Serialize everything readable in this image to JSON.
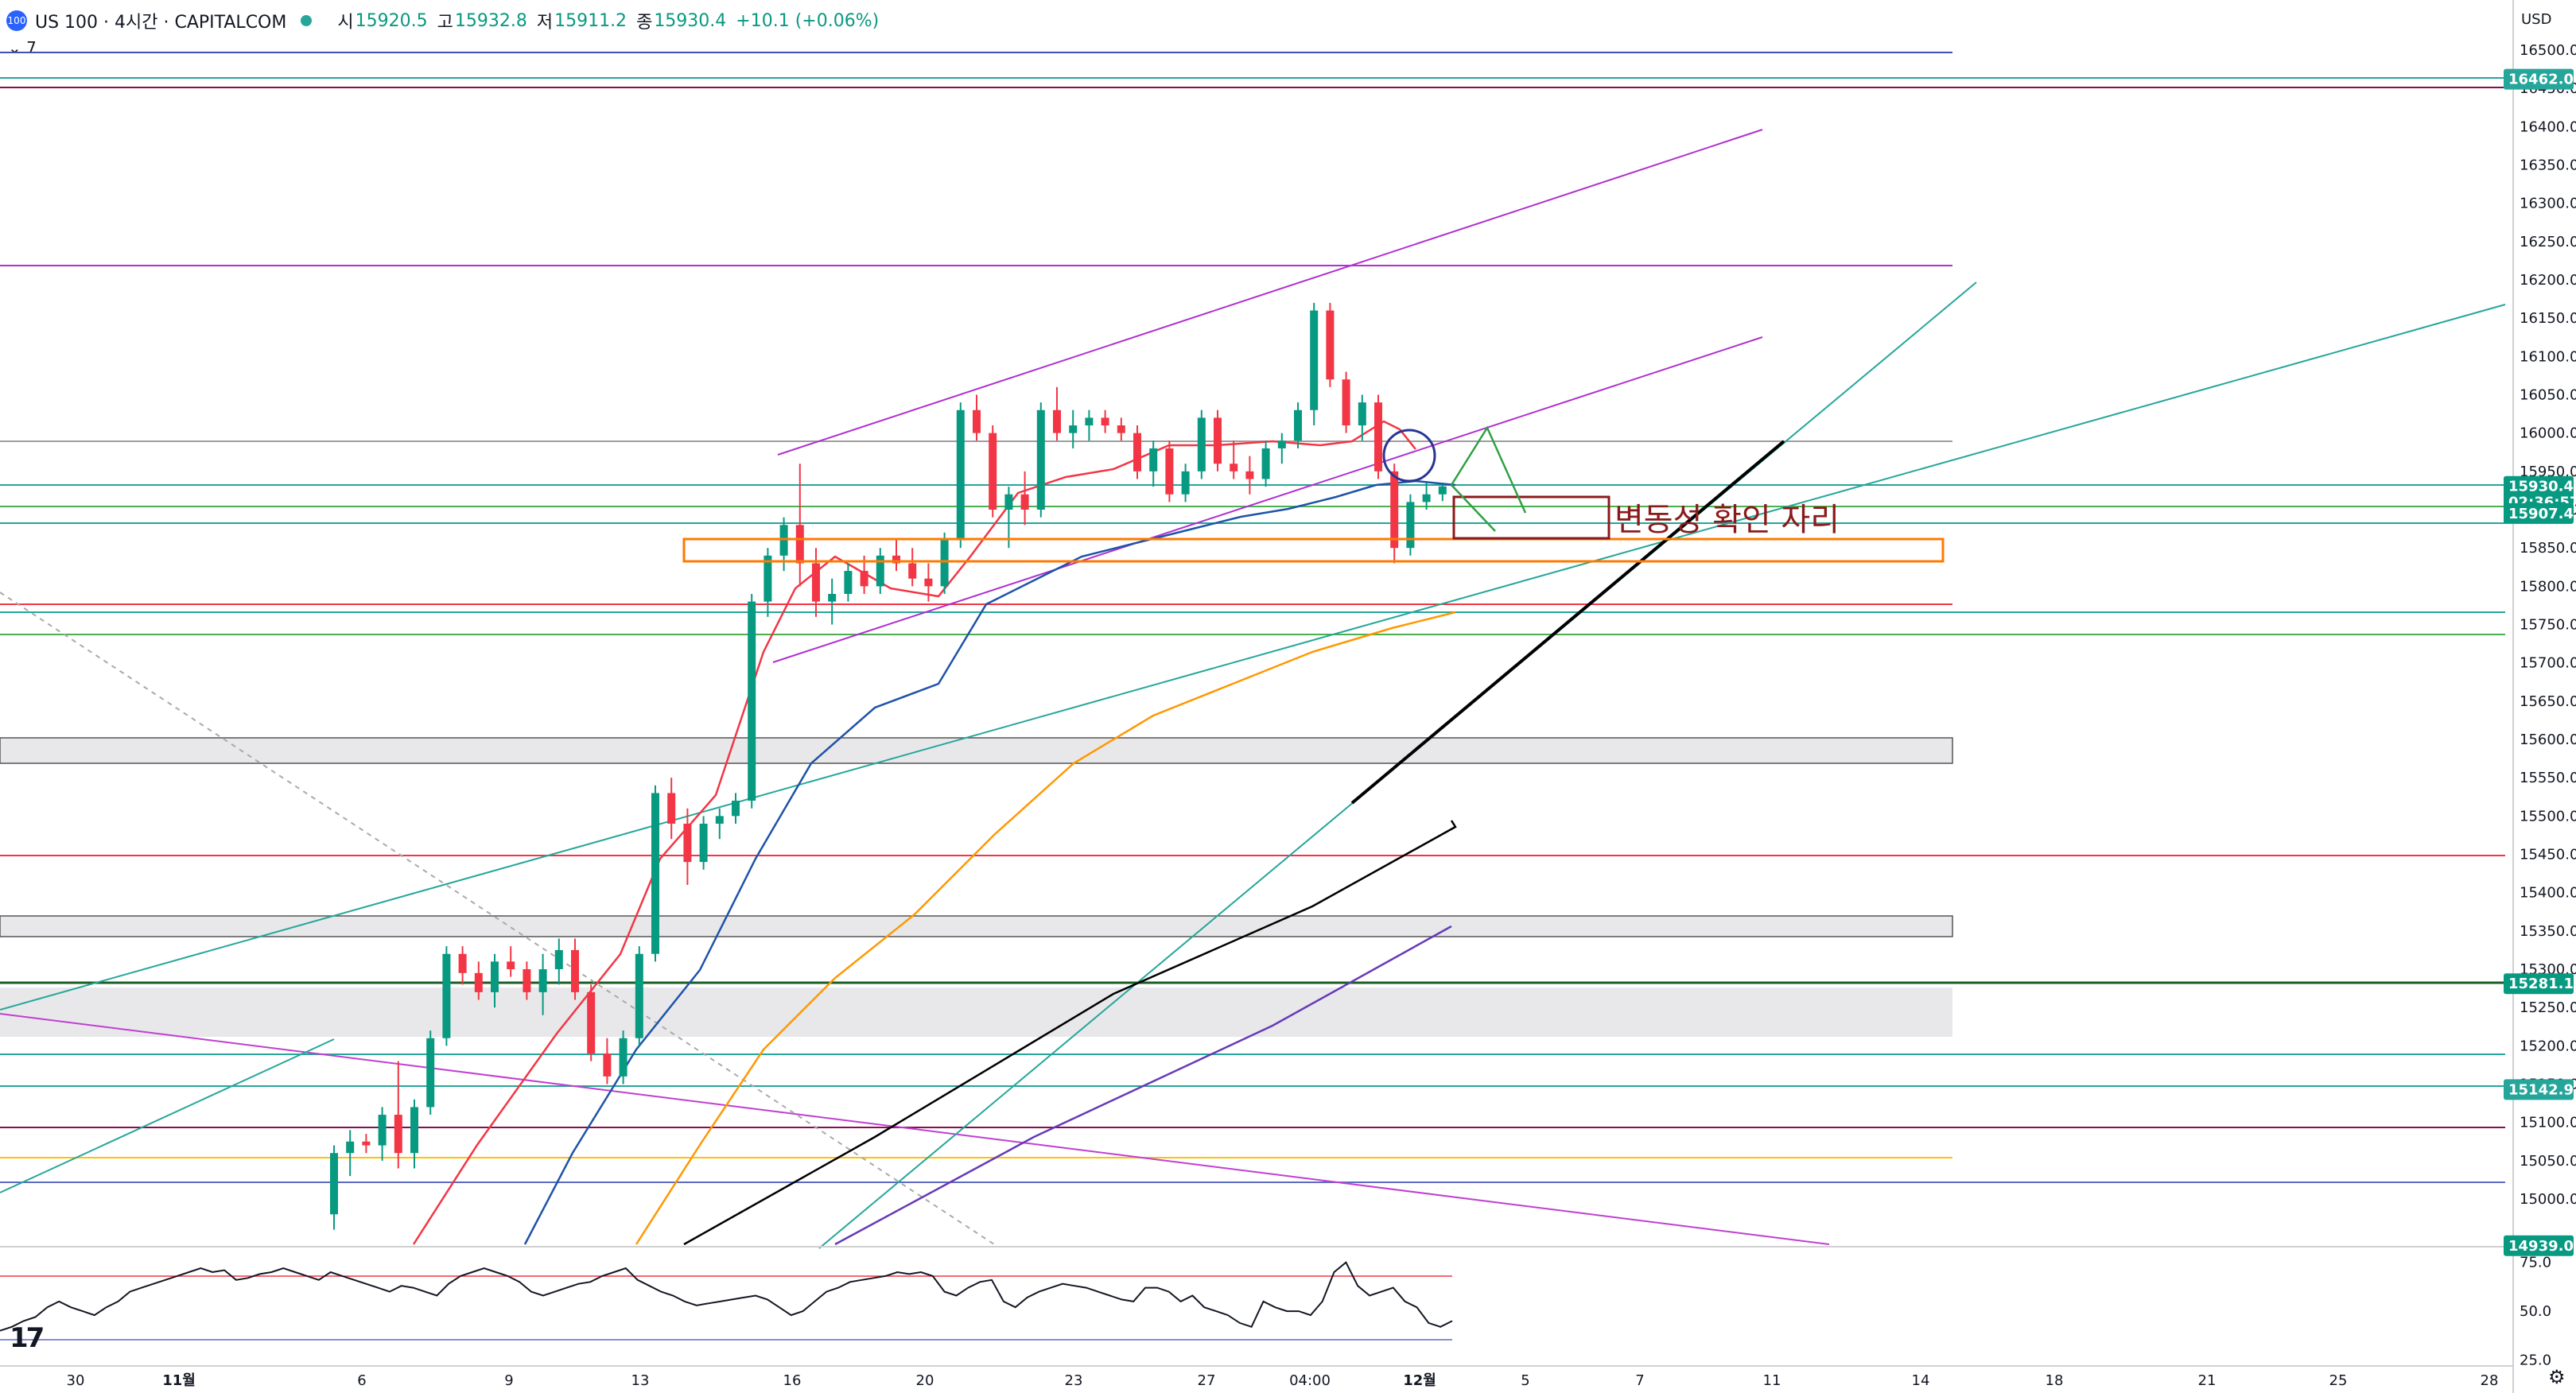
{
  "header": {
    "logo_text": "100",
    "symbol": "US 100 · 4시간 · CAPITALCOM",
    "open_label": "시",
    "open": "15920.5",
    "high_label": "고",
    "high": "15932.8",
    "low_label": "저",
    "low": "15911.2",
    "close_label": "종",
    "close": "15930.4",
    "change": "+10.1 (+0.06%)",
    "collapse": "⌄ 7"
  },
  "colors": {
    "up": "#089981",
    "down": "#f23645",
    "ema_fast": "#f23645",
    "ema_mid": "#1e53a8",
    "ema_slow": "#ff9800",
    "channel": "#b030d0",
    "trend_teal": "#26a69a",
    "annotation": "#8b1a1a"
  },
  "chart_data": {
    "type": "candlestick",
    "currency": "USD",
    "y_ticks": [
      16500,
      16450,
      16400,
      16350,
      16300,
      16250,
      16200,
      16150,
      16100,
      16050,
      16000,
      15950,
      15900,
      15850,
      15800,
      15750,
      15700,
      15650,
      15600,
      15550,
      15500,
      15450,
      15400,
      15350,
      15300,
      15250,
      15200,
      15150,
      15100,
      15050,
      15000
    ],
    "ylim": [
      14925,
      16535
    ],
    "x_tick_labels": [
      "30",
      "11월",
      "6",
      "9",
      "13",
      "16",
      "20",
      "23",
      "27",
      "04:00",
      "12월",
      "5",
      "7",
      "11",
      "14",
      "18",
      "21",
      "25",
      "28"
    ],
    "price_badges": [
      {
        "text": "16462.0",
        "color": "#26a69a"
      },
      {
        "text": "15930.4",
        "color": "#089981"
      },
      {
        "text": "02:36:57",
        "color": "#089981"
      },
      {
        "text": "15907.4",
        "color": "#089981"
      },
      {
        "text": "15281.1",
        "color": "#089981"
      },
      {
        "text": "15142.9",
        "color": "#26a69a"
      },
      {
        "text": "14939.0",
        "color": "#089981"
      }
    ],
    "annotation": "변동성 확인 자리",
    "candles": [
      [
        14980,
        15070,
        14960,
        15060
      ],
      [
        15060,
        15090,
        15030,
        15075
      ],
      [
        15075,
        15085,
        15060,
        15070
      ],
      [
        15070,
        15120,
        15050,
        15110
      ],
      [
        15110,
        15180,
        15040,
        15060
      ],
      [
        15060,
        15130,
        15040,
        15120
      ],
      [
        15120,
        15220,
        15110,
        15210
      ],
      [
        15210,
        15330,
        15200,
        15320
      ],
      [
        15320,
        15330,
        15280,
        15295
      ],
      [
        15295,
        15310,
        15260,
        15270
      ],
      [
        15270,
        15320,
        15250,
        15310
      ],
      [
        15310,
        15330,
        15290,
        15300
      ],
      [
        15300,
        15310,
        15260,
        15270
      ],
      [
        15270,
        15320,
        15240,
        15300
      ],
      [
        15300,
        15340,
        15280,
        15325
      ],
      [
        15325,
        15340,
        15260,
        15270
      ],
      [
        15270,
        15280,
        15180,
        15190
      ],
      [
        15190,
        15210,
        15150,
        15160
      ],
      [
        15160,
        15220,
        15150,
        15210
      ],
      [
        15210,
        15330,
        15200,
        15320
      ],
      [
        15320,
        15540,
        15310,
        15530
      ],
      [
        15530,
        15550,
        15470,
        15490
      ],
      [
        15490,
        15510,
        15410,
        15440
      ],
      [
        15440,
        15500,
        15430,
        15490
      ],
      [
        15490,
        15510,
        15470,
        15500
      ],
      [
        15500,
        15530,
        15490,
        15520
      ],
      [
        15520,
        15790,
        15510,
        15780
      ],
      [
        15780,
        15850,
        15760,
        15840
      ],
      [
        15840,
        15890,
        15820,
        15880
      ],
      [
        15880,
        15960,
        15800,
        15830
      ],
      [
        15830,
        15850,
        15760,
        15780
      ],
      [
        15780,
        15810,
        15750,
        15790
      ],
      [
        15790,
        15830,
        15780,
        15820
      ],
      [
        15820,
        15840,
        15790,
        15800
      ],
      [
        15800,
        15850,
        15790,
        15840
      ],
      [
        15840,
        15860,
        15820,
        15830
      ],
      [
        15830,
        15850,
        15800,
        15810
      ],
      [
        15810,
        15830,
        15780,
        15800
      ],
      [
        15800,
        15870,
        15790,
        15860
      ],
      [
        15860,
        16040,
        15850,
        16030
      ],
      [
        16030,
        16050,
        15990,
        16000
      ],
      [
        16000,
        16010,
        15890,
        15900
      ],
      [
        15900,
        15930,
        15850,
        15920
      ],
      [
        15920,
        15950,
        15880,
        15900
      ],
      [
        15900,
        16040,
        15890,
        16030
      ],
      [
        16030,
        16060,
        15990,
        16000
      ],
      [
        16000,
        16030,
        15980,
        16010
      ],
      [
        16010,
        16030,
        15990,
        16020
      ],
      [
        16020,
        16030,
        16000,
        16010
      ],
      [
        16010,
        16020,
        15990,
        16000
      ],
      [
        16000,
        16010,
        15940,
        15950
      ],
      [
        15950,
        15990,
        15930,
        15980
      ],
      [
        15980,
        15990,
        15910,
        15920
      ],
      [
        15920,
        15960,
        15910,
        15950
      ],
      [
        15950,
        16030,
        15940,
        16020
      ],
      [
        16020,
        16030,
        15950,
        15960
      ],
      [
        15960,
        15990,
        15940,
        15950
      ],
      [
        15950,
        15970,
        15920,
        15940
      ],
      [
        15940,
        15990,
        15930,
        15980
      ],
      [
        15980,
        16000,
        15960,
        15990
      ],
      [
        15990,
        16040,
        15980,
        16030
      ],
      [
        16030,
        16170,
        16010,
        16160
      ],
      [
        16160,
        16170,
        16060,
        16070
      ],
      [
        16070,
        16080,
        16000,
        16010
      ],
      [
        16010,
        16050,
        15990,
        16040
      ],
      [
        16040,
        16050,
        15940,
        15950
      ],
      [
        15950,
        15960,
        15830,
        15850
      ],
      [
        15850,
        15920,
        15840,
        15910
      ],
      [
        15910,
        15935,
        15900,
        15920
      ],
      [
        15920,
        15932.8,
        15911.2,
        15930.4
      ]
    ],
    "rsi": {
      "ticks": [
        75.0,
        50.0,
        25.0
      ],
      "ylim": [
        22,
        83
      ],
      "overbought": 70,
      "oversold": 30,
      "values": [
        40,
        42,
        45,
        47,
        52,
        55,
        52,
        50,
        48,
        52,
        55,
        60,
        62,
        64,
        66,
        68,
        70,
        72,
        70,
        71,
        66,
        67,
        69,
        70,
        72,
        70,
        68,
        66,
        70,
        68,
        66,
        64,
        62,
        60,
        63,
        62,
        60,
        58,
        64,
        68,
        70,
        72,
        70,
        68,
        65,
        60,
        58,
        60,
        62,
        64,
        65,
        68,
        70,
        72,
        66,
        63,
        60,
        58,
        55,
        53,
        54,
        55,
        56,
        57,
        58,
        56,
        52,
        48,
        50,
        55,
        60,
        62,
        65,
        66,
        67,
        68,
        70,
        69,
        70,
        68,
        60,
        58,
        62,
        65,
        66,
        55,
        52,
        57,
        60,
        62,
        64,
        63,
        62,
        60,
        58,
        56,
        55,
        62,
        62,
        60,
        55,
        58,
        52,
        50,
        48,
        44,
        42,
        55,
        52,
        50,
        50,
        48,
        55,
        70,
        75,
        63,
        58,
        60,
        62,
        55,
        52,
        44,
        42,
        45
      ]
    },
    "grid": true
  }
}
